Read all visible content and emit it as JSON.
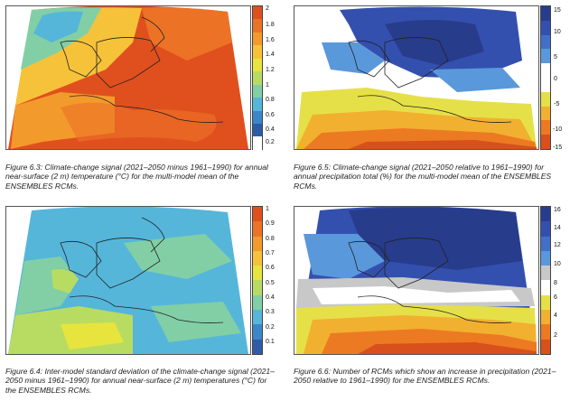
{
  "figures": [
    {
      "id": "fig63",
      "caption": "Figure 6.3: Climate-change signal (2021–2050 minus 1961–1990) for annual near-surface (2 m) temperature (°C) for the multi-model mean of the ENSEMBLES RCMs.",
      "colorbar": {
        "ticks": [
          "2",
          "1.8",
          "1.6",
          "1.4",
          "1.2",
          "1",
          "0.8",
          "0.6",
          "0.4",
          "0.2"
        ],
        "colors": [
          "#e0501e",
          "#ec7326",
          "#f39a2c",
          "#f6c23a",
          "#e8e43e",
          "#b8dc62",
          "#82cfa6",
          "#55b6da",
          "#3a86c8",
          "#2e5aa8",
          "#ffffff"
        ]
      }
    },
    {
      "id": "fig65",
      "caption": "Figure 6.5: Climate-change signal (2021–2050 relative to 1961–1990) for annual precipitation total (%) for the multi-model mean of the ENSEMBLES RCMs.",
      "colorbar": {
        "ticks": [
          "15",
          "10",
          "5",
          "0",
          "-5",
          "-10",
          "-15"
        ],
        "colors": [
          "#283c8c",
          "#3450ae",
          "#4270c8",
          "#5a98dc",
          "#ffffff",
          "#ffffff",
          "#e6e048",
          "#f2b030",
          "#ec7a22",
          "#d8501c"
        ]
      }
    },
    {
      "id": "fig64",
      "caption": "Figure 6.4: Inter-model standard deviation of the climate-change signal (2021–2050 minus 1961–1990) for annual near-surface (2 m) temperatures (°C) for the ENSEMBLES RCMs.",
      "colorbar": {
        "ticks": [
          "1",
          "0.9",
          "0.8",
          "0.7",
          "0.6",
          "0.5",
          "0.4",
          "0.3",
          "0.2",
          "0.1"
        ],
        "colors": [
          "#e0501e",
          "#ec7326",
          "#f39a2c",
          "#f6c23a",
          "#e8e43e",
          "#b8dc62",
          "#82cfa6",
          "#55b6da",
          "#3a86c8",
          "#2e5aa8"
        ]
      }
    },
    {
      "id": "fig66",
      "caption": "Figure 6.6: Number of RCMs which show an increase in precipitation (2021–2050 relative to 1961–1990) for the ENSEMBLES RCMs.",
      "colorbar": {
        "ticks": [
          "16",
          "14",
          "12",
          "10",
          "8",
          "6",
          "4",
          "2"
        ],
        "colors": [
          "#283c8c",
          "#3450ae",
          "#4270c8",
          "#5a98dc",
          "#c8c8c8",
          "#ffffff",
          "#e6e048",
          "#f2b030",
          "#ec7a22",
          "#d8501c"
        ]
      }
    }
  ]
}
